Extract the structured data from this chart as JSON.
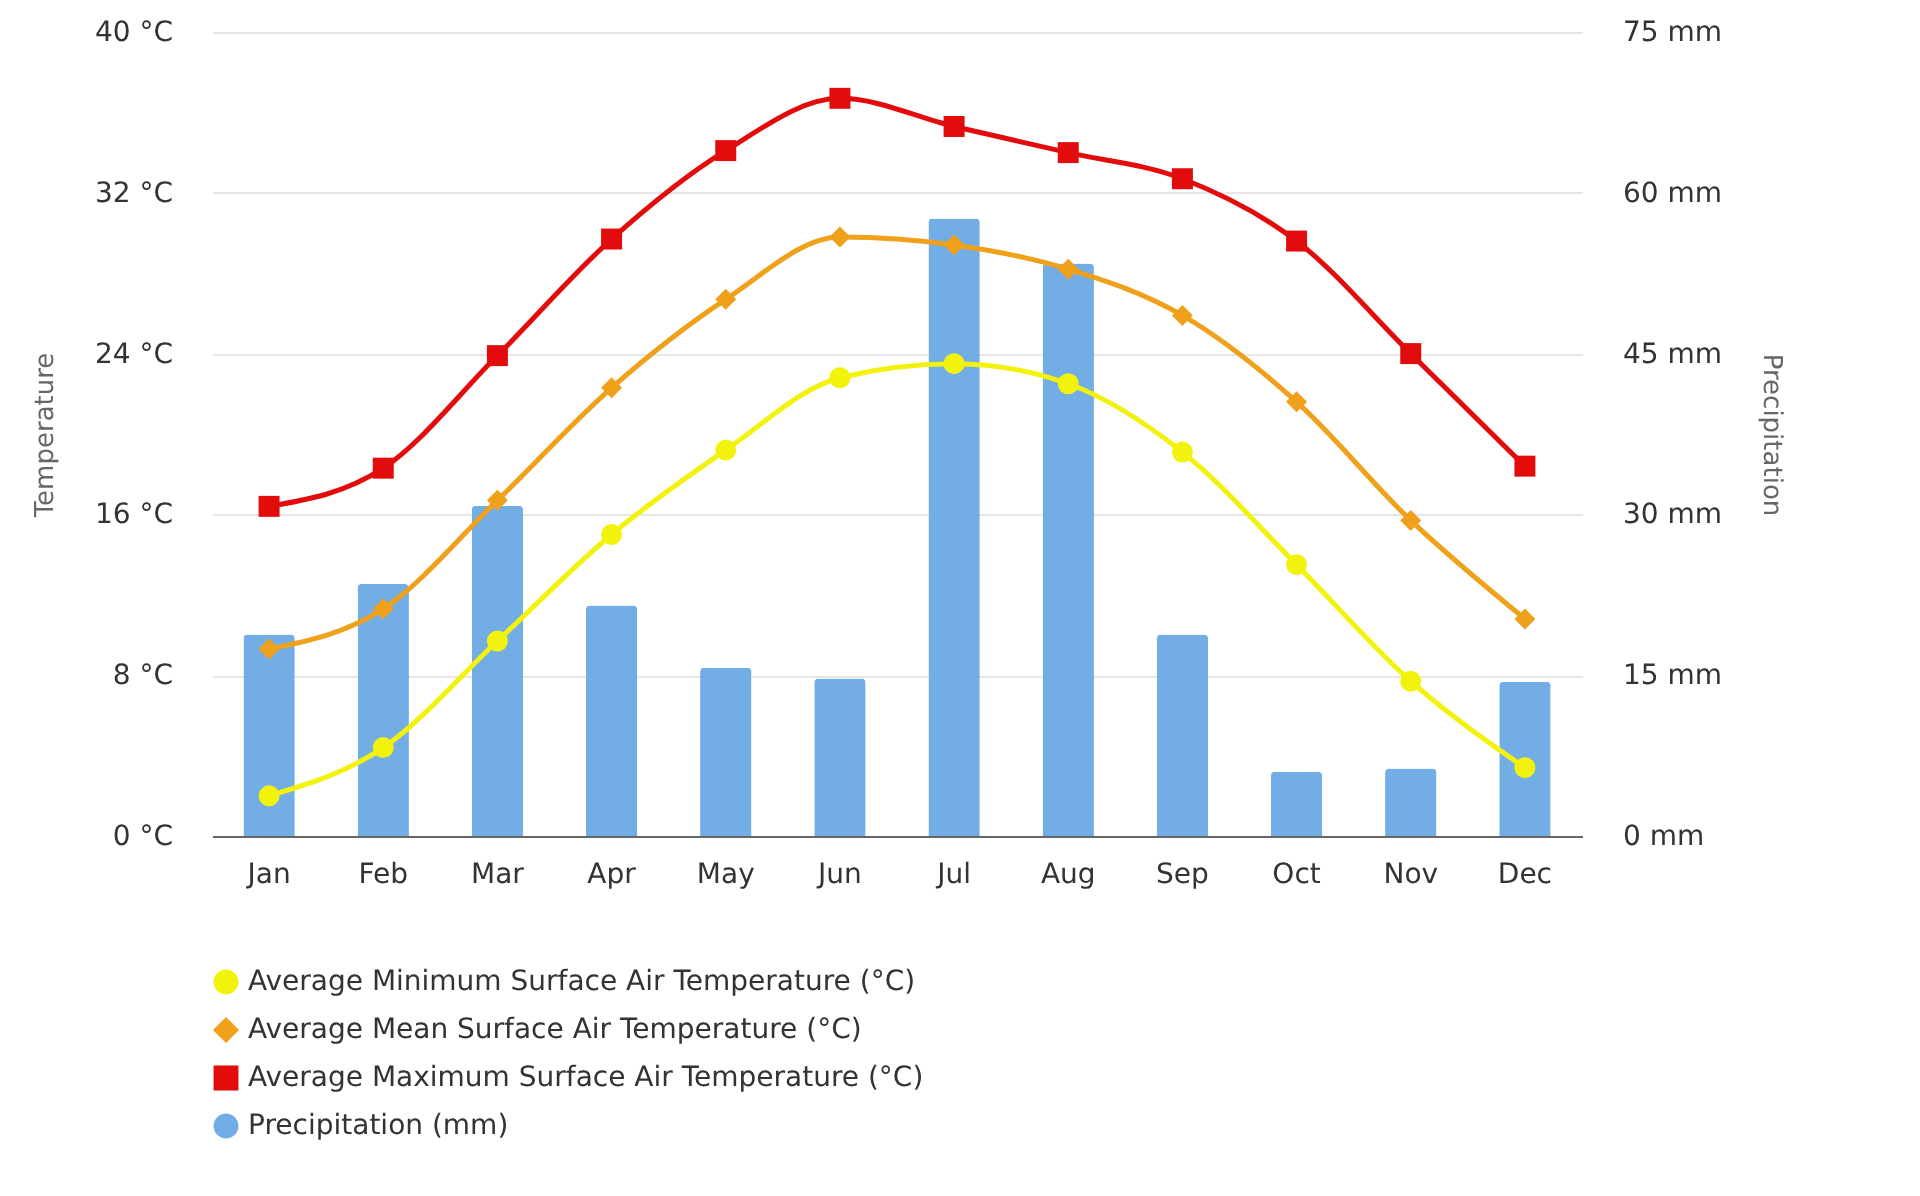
{
  "chart_data": {
    "type": "bar",
    "categories": [
      "Jan",
      "Feb",
      "Mar",
      "Apr",
      "May",
      "Jun",
      "Jul",
      "Aug",
      "Sep",
      "Oct",
      "Nov",
      "Dec"
    ],
    "ylabel": "Temperature",
    "y2label": "Precipitation",
    "ylim": [
      0,
      40
    ],
    "yticks": [
      {
        "value": 0,
        "label": "0 °C"
      },
      {
        "value": 8,
        "label": "8 °C"
      },
      {
        "value": 16,
        "label": "16 °C"
      },
      {
        "value": 24,
        "label": "24 °C"
      },
      {
        "value": 32,
        "label": "32 °C"
      },
      {
        "value": 40,
        "label": "40 °C"
      }
    ],
    "y2lim": [
      0,
      75
    ],
    "y2ticks": [
      {
        "value": 0,
        "label": "0 mm"
      },
      {
        "value": 15,
        "label": "15 mm"
      },
      {
        "value": 30,
        "label": "30 mm"
      },
      {
        "value": 45,
        "label": "45 mm"
      },
      {
        "value": 60,
        "label": "60 mm"
      },
      {
        "value": 75,
        "label": "75 mm"
      }
    ],
    "grid": "y",
    "legend": "bottom",
    "series": [
      {
        "name": "Average Minimum Surface Air Temperature (°C)",
        "type": "line",
        "marker": "circle",
        "color": "#f2f20c",
        "values": [
          2.0,
          4.4,
          9.7,
          15.0,
          19.2,
          22.8,
          23.5,
          22.5,
          19.1,
          13.5,
          7.7,
          3.4
        ]
      },
      {
        "name": "Average Mean Surface Air Temperature (°C)",
        "type": "line",
        "marker": "diamond",
        "color": "#f0a11c",
        "values": [
          9.3,
          11.3,
          16.7,
          22.3,
          26.7,
          29.8,
          29.4,
          28.2,
          25.9,
          21.6,
          15.7,
          10.8
        ]
      },
      {
        "name": "Average Maximum Surface Air Temperature (°C)",
        "type": "line",
        "marker": "square",
        "color": "#e30c0c",
        "values": [
          16.4,
          18.3,
          23.9,
          29.7,
          34.1,
          36.7,
          35.3,
          34.0,
          32.7,
          29.6,
          24.0,
          18.4
        ]
      },
      {
        "name": "Precipitation (mm)",
        "axis": "y2",
        "color": "#73ade6",
        "values": [
          18.8,
          23.5,
          30.8,
          21.5,
          15.7,
          14.7,
          57.6,
          53.4,
          18.8,
          6.0,
          6.3,
          14.4
        ]
      }
    ]
  }
}
